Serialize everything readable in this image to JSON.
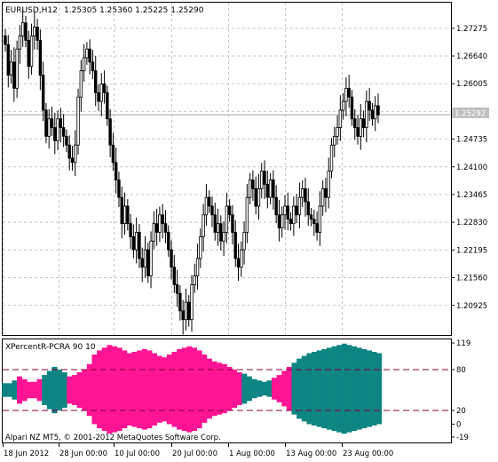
{
  "main_chart": {
    "symbol_label": "EURUSD,H12",
    "ohlc_label": "1.25305 1.25360 1.25225 1.25290",
    "price_ticks": [
      "1.27275",
      "1.26640",
      "1.26005",
      "1.25370",
      "1.24735",
      "1.24100",
      "1.23465",
      "1.22830",
      "1.22195",
      "1.21560",
      "1.20925"
    ],
    "current_price": "1.25292",
    "candle_color": "#000000",
    "grid_color": "#c8c8c8",
    "current_price_line_color": "#c0c0c0"
  },
  "indicator": {
    "title": "XPercentR-PCRA 90 10",
    "scale_ticks": [
      "119",
      "80",
      "20",
      "0",
      "-19"
    ],
    "level_upper": 80,
    "level_lower": 20,
    "level_color": "#800040",
    "colors": {
      "pink": "#ff1493",
      "teal": "#0e8582"
    }
  },
  "time_axis": {
    "labels": [
      "18 Jun 2012",
      "28 Jun 00:00",
      "10 Jul 00:00",
      "20 Jul 00:00",
      "1 Aug 00:00",
      "13 Aug 00:00",
      "23 Aug 00:00"
    ]
  },
  "footer": {
    "copyright": "Alpari NZ MT5, © 2001-2012 MetaQuotes Software Corp."
  },
  "chart_data": {
    "type": "candlestick",
    "symbol": "EURUSD",
    "timeframe": "H12",
    "price_range": [
      1.2035,
      1.2776
    ],
    "closes": [
      1.269,
      1.262,
      1.265,
      1.259,
      1.268,
      1.271,
      1.274,
      1.27,
      1.264,
      1.271,
      1.273,
      1.27,
      1.262,
      1.254,
      1.248,
      1.252,
      1.25,
      1.247,
      1.252,
      1.25,
      1.248,
      1.246,
      1.243,
      1.242,
      1.246,
      1.257,
      1.263,
      1.266,
      1.268,
      1.265,
      1.263,
      1.258,
      1.256,
      1.26,
      1.258,
      1.252,
      1.246,
      1.242,
      1.238,
      1.234,
      1.228,
      1.232,
      1.228,
      1.225,
      1.222,
      1.226,
      1.22,
      1.218,
      1.222,
      1.216,
      1.224,
      1.228,
      1.226,
      1.23,
      1.228,
      1.226,
      1.222,
      1.218,
      1.214,
      1.212,
      1.208,
      1.206,
      1.21,
      1.206,
      1.214,
      1.216,
      1.22,
      1.225,
      1.23,
      1.234,
      1.232,
      1.23,
      1.226,
      1.228,
      1.224,
      1.226,
      1.232,
      1.23,
      1.226,
      1.22,
      1.218,
      1.222,
      1.226,
      1.234,
      1.238,
      1.236,
      1.232,
      1.236,
      1.24,
      1.237,
      1.234,
      1.238,
      1.234,
      1.23,
      1.227,
      1.23,
      1.232,
      1.229,
      1.228,
      1.232,
      1.23,
      1.234,
      1.236,
      1.233,
      1.23,
      1.229,
      1.228,
      1.226,
      1.232,
      1.236,
      1.234,
      1.24,
      1.246,
      1.248,
      1.25,
      1.254,
      1.256,
      1.259,
      1.257,
      1.252,
      1.25,
      1.248,
      1.252,
      1.25,
      1.256,
      1.254,
      1.252,
      1.255,
      1.2529
    ],
    "indicator_series": [
      {
        "name": "PCRA",
        "values_upper": [
          60,
          60,
          64,
          70,
          66,
          62,
          62,
          66,
          72,
          78,
          84,
          80,
          76,
          70,
          72,
          76,
          80,
          88,
          102,
          108,
          112,
          116,
          114,
          112,
          108,
          104,
          106,
          108,
          110,
          108,
          104,
          100,
          98,
          102,
          106,
          110,
          112,
          114,
          112,
          108,
          102,
          96,
          92,
          90,
          88,
          84,
          80,
          76,
          74,
          70,
          66,
          64,
          62,
          64,
          68,
          72,
          78,
          84,
          90,
          96,
          100,
          104,
          106,
          108,
          110,
          112,
          114,
          116,
          118,
          116,
          114,
          112,
          110,
          108,
          106,
          104
        ],
        "values_lower": [
          40,
          40,
          36,
          30,
          34,
          38,
          38,
          34,
          28,
          22,
          16,
          20,
          24,
          30,
          28,
          24,
          20,
          12,
          0,
          -6,
          -10,
          -14,
          -12,
          -10,
          -6,
          -2,
          -4,
          -6,
          -8,
          -6,
          -2,
          2,
          4,
          0,
          -4,
          -8,
          -10,
          -12,
          -10,
          -6,
          2,
          8,
          12,
          14,
          16,
          20,
          24,
          28,
          30,
          34,
          38,
          40,
          42,
          40,
          36,
          32,
          26,
          20,
          14,
          8,
          4,
          0,
          -2,
          -4,
          -6,
          -8,
          -10,
          -12,
          -14,
          -12,
          -10,
          -8,
          -6,
          -4,
          -2,
          0
        ]
      }
    ]
  }
}
